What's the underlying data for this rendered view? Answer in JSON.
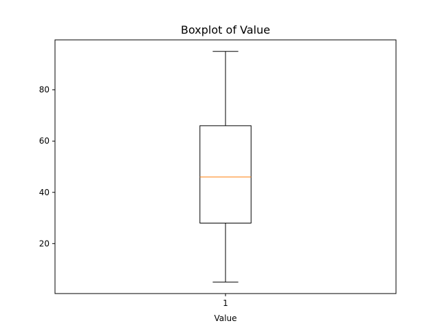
{
  "chart_data": {
    "type": "boxplot",
    "title": "Boxplot of Value",
    "xlabel": "Value",
    "ylabel": "",
    "categories": [
      "1"
    ],
    "ylim": [
      0.5,
      99.5
    ],
    "yticks": [
      20,
      40,
      60,
      80
    ],
    "grid": false,
    "boxes": [
      {
        "category": "1",
        "whisker_low": 5,
        "q1": 28,
        "median": 46,
        "q3": 66,
        "whisker_high": 95
      }
    ],
    "colors": {
      "box": "#000000",
      "median": "#ff7f0e",
      "axes": "#000000",
      "background": "#ffffff"
    }
  }
}
